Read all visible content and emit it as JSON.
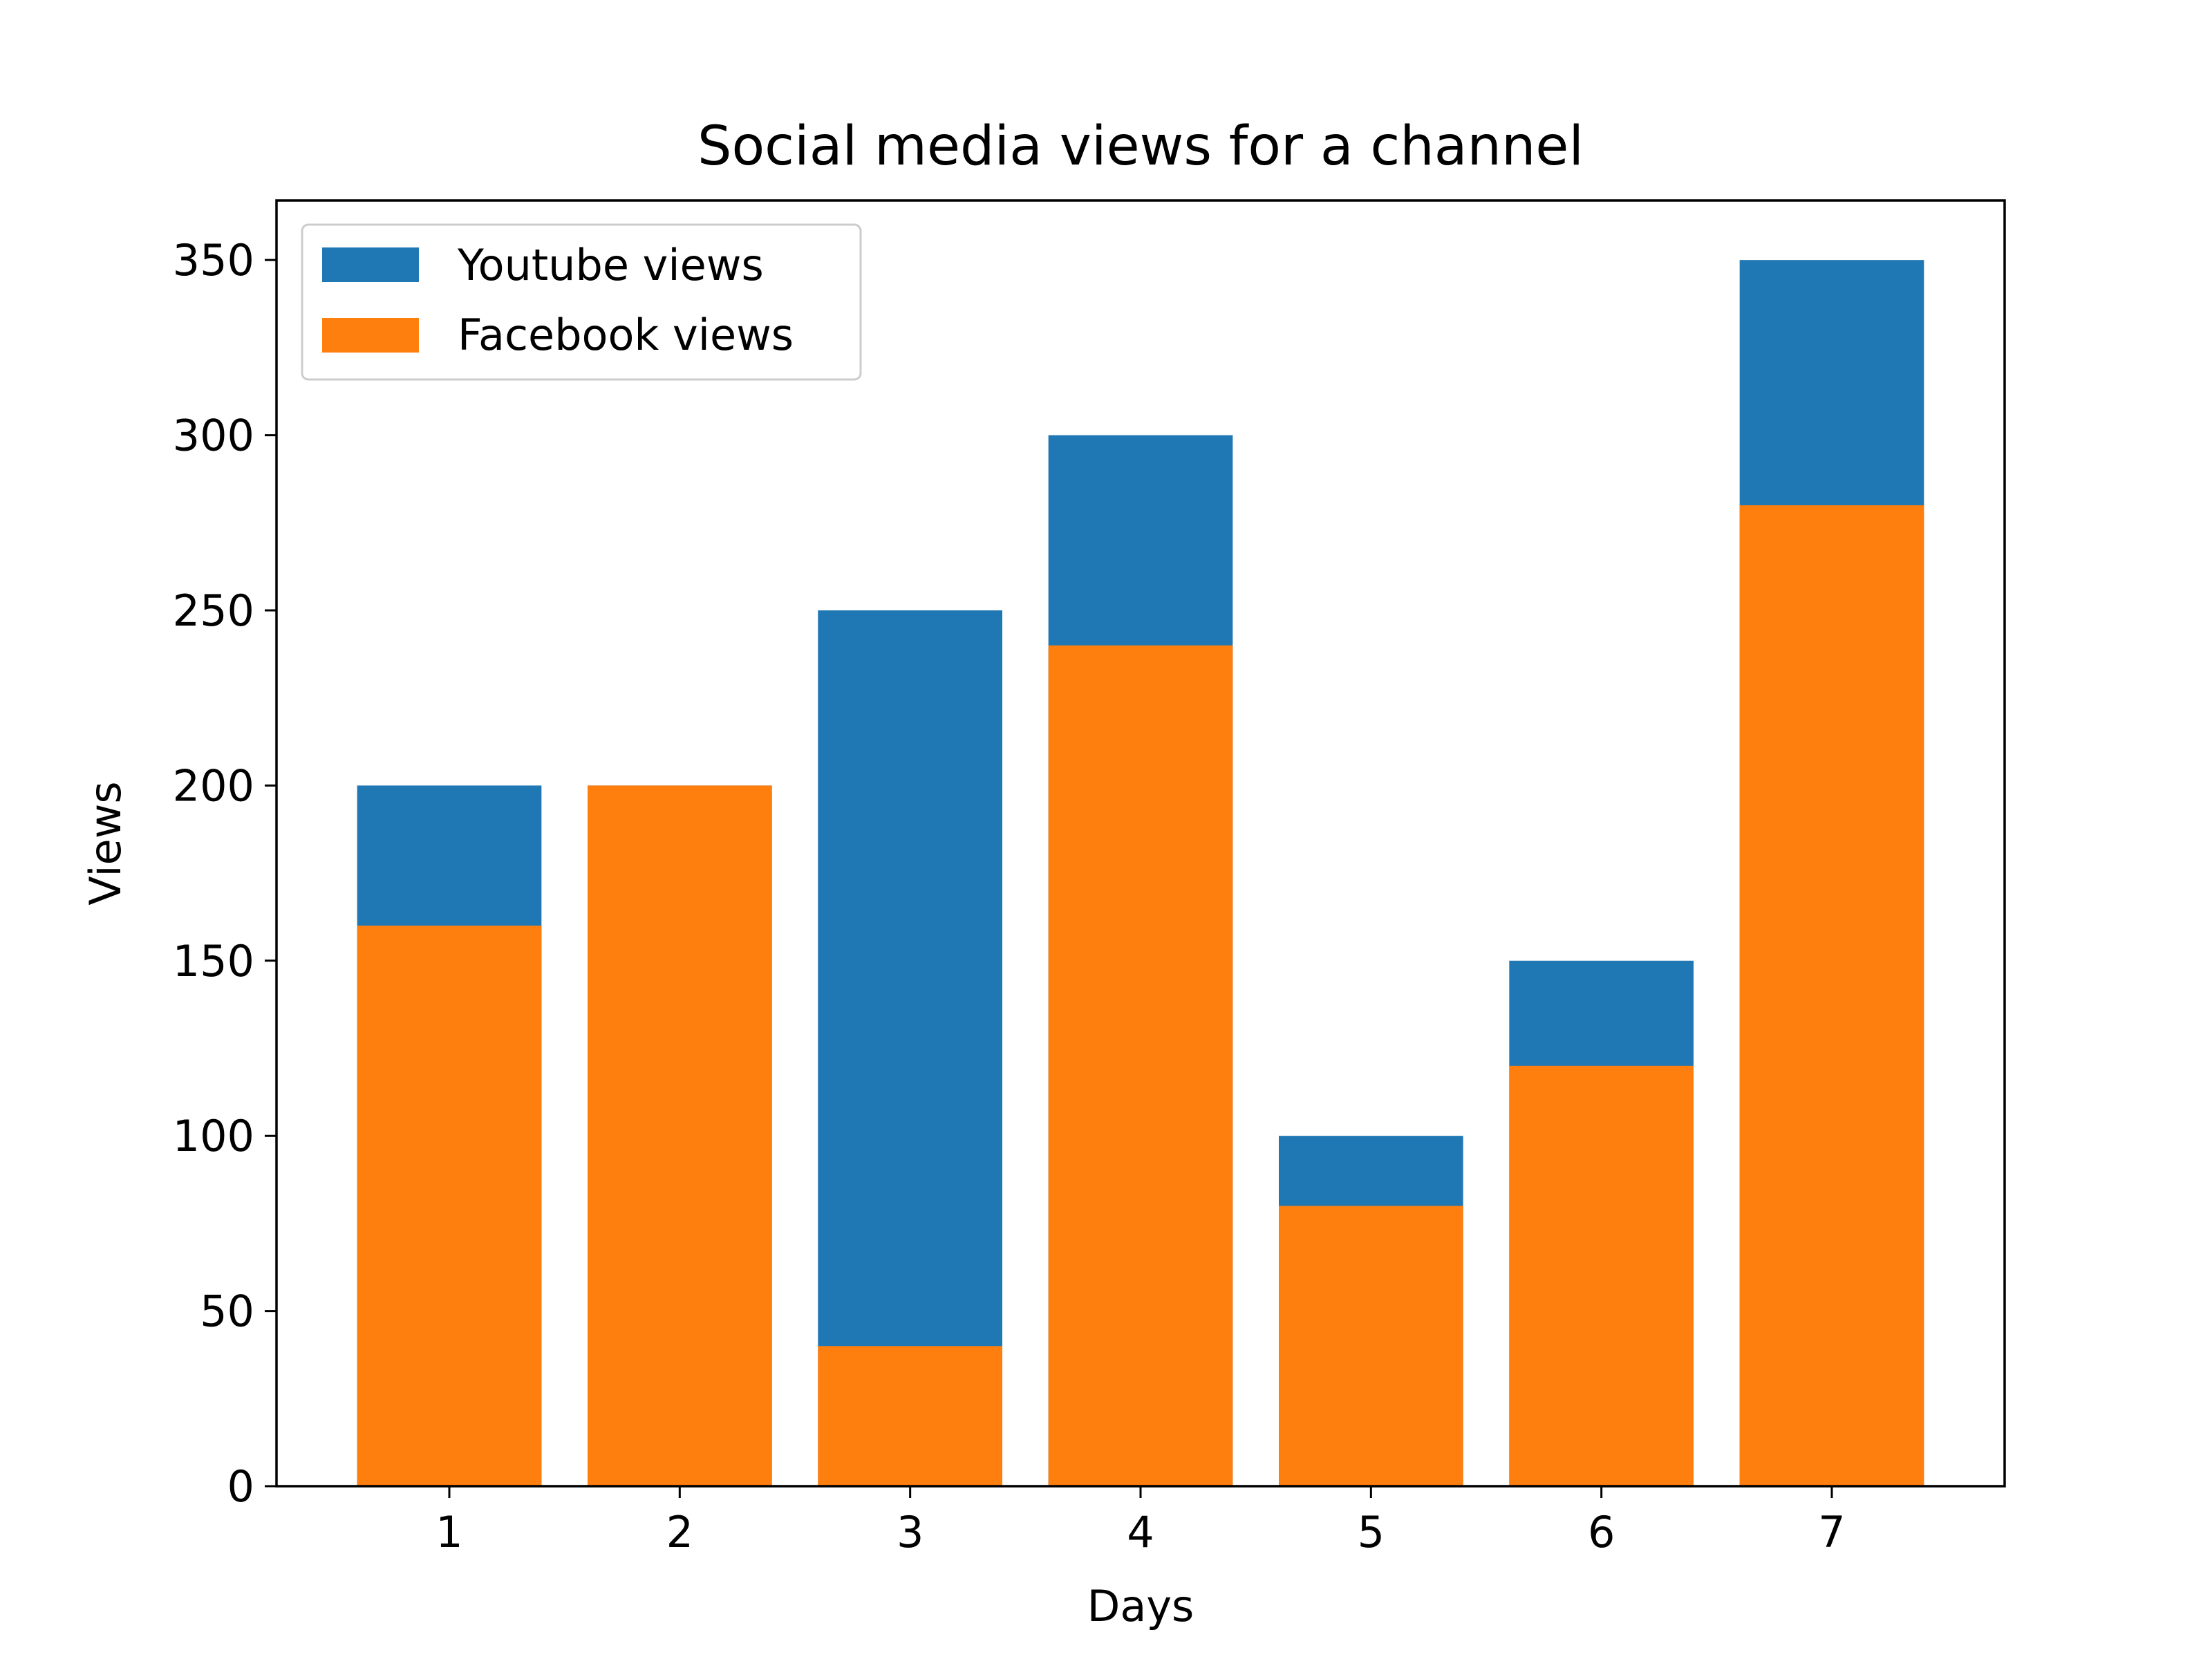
{
  "chart_data": {
    "type": "bar",
    "title": "Social media views for a channel",
    "xlabel": "Days",
    "ylabel": "Views",
    "categories": [
      "1",
      "2",
      "3",
      "4",
      "5",
      "6",
      "7"
    ],
    "ylim": [
      0,
      367
    ],
    "yticks": [
      0,
      50,
      100,
      150,
      200,
      250,
      300,
      350
    ],
    "grid": false,
    "legend_position": "top-left",
    "series": [
      {
        "name": "Youtube views",
        "color": "#1f77b4",
        "values": [
          200,
          200,
          250,
          300,
          100,
          150,
          350
        ]
      },
      {
        "name": "Facebook views",
        "color": "#ff7f0e",
        "values": [
          160,
          200,
          40,
          240,
          80,
          120,
          280
        ]
      }
    ]
  }
}
